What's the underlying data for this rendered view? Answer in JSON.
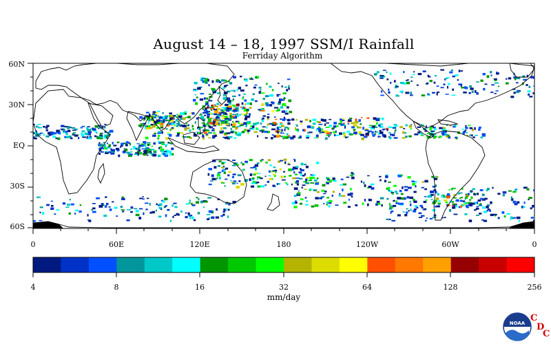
{
  "title": "August 14 – 18, 1997 SSM/I Rainfall",
  "subtitle": "Ferriday Algorithm",
  "lat_labels": [
    "60N",
    "30N",
    "EQ",
    "30S",
    "60S"
  ],
  "lon_labels": [
    "0",
    "60E",
    "120E",
    "180",
    "120W",
    "60W",
    "0"
  ],
  "colorbar": {
    "colors": [
      "#001a80",
      "#0032c8",
      "#0050ff",
      "#00969c",
      "#00c8c8",
      "#00ffff",
      "#009600",
      "#00c800",
      "#00ff00",
      "#b4b400",
      "#dcdc00",
      "#ffff00",
      "#ff5000",
      "#ff7800",
      "#ffa000",
      "#960000",
      "#c80000",
      "#ff0000"
    ],
    "tick_labels": [
      "4",
      "8",
      "16",
      "32",
      "64",
      "128",
      "256"
    ],
    "units": "mm/day"
  },
  "logo": {
    "name": "noaa-logo",
    "letters": [
      "C",
      "D",
      "C"
    ],
    "emblem_text": "NOAA"
  }
}
